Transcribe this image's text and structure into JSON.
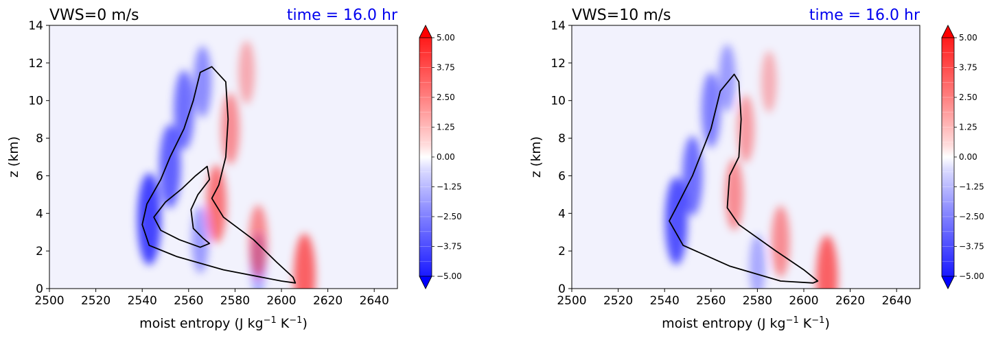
{
  "colors": {
    "background_field": "#f2f2fd",
    "negative": "#0000ff",
    "positive": "#ff0000",
    "time_text": "#0000ee",
    "contour": "#000000"
  },
  "chart_data": [
    {
      "type": "heatmap",
      "title": "VWS=0 m/s",
      "time_label": "time = 16.0 hr",
      "xlabel_parts": [
        "moist entropy (J kg",
        "−1",
        " K",
        "−1",
        ")"
      ],
      "ylabel": "z (km)",
      "xlim": [
        2500,
        2650
      ],
      "ylim": [
        0,
        14
      ],
      "xticks": [
        "2500",
        "2520",
        "2540",
        "2560",
        "2580",
        "2600",
        "2620",
        "2640"
      ],
      "yticks": [
        "0",
        "2",
        "4",
        "6",
        "8",
        "10",
        "12",
        "14"
      ],
      "colorbar": {
        "range": [
          -5.0,
          5.0
        ],
        "ticks": [
          "5.00",
          "3.75",
          "2.50",
          "1.25",
          "0.00",
          "−1.25",
          "−2.50",
          "−3.75",
          "−5.00"
        ],
        "extend": "both"
      },
      "fields": {
        "negative": [
          [
            2543,
            3.7,
            -4.5
          ],
          [
            2552,
            6.5,
            -3.5
          ],
          [
            2558,
            9.5,
            -3.0
          ],
          [
            2566,
            11.0,
            -2.0
          ],
          [
            2565,
            2.6,
            -1.5
          ],
          [
            2590,
            1.3,
            -1.0
          ]
        ],
        "positive": [
          [
            2572,
            4.5,
            2.8
          ],
          [
            2578,
            8.5,
            2.0
          ],
          [
            2590,
            2.5,
            2.2
          ],
          [
            2610,
            0.7,
            3.5
          ],
          [
            2585,
            11.5,
            1.0
          ]
        ]
      },
      "contour_outer": [
        [
          2570,
          11.8
        ],
        [
          2576,
          11.0
        ],
        [
          2577,
          9.0
        ],
        [
          2576,
          7.0
        ],
        [
          2573,
          5.5
        ],
        [
          2570,
          4.8
        ],
        [
          2575,
          3.8
        ],
        [
          2588,
          2.6
        ],
        [
          2598,
          1.4
        ],
        [
          2605,
          0.6
        ],
        [
          2606,
          0.3
        ],
        [
          2600,
          0.4
        ],
        [
          2575,
          1.0
        ],
        [
          2555,
          1.7
        ],
        [
          2543,
          2.3
        ],
        [
          2540,
          3.4
        ],
        [
          2542,
          4.5
        ],
        [
          2548,
          5.8
        ],
        [
          2552,
          7.0
        ],
        [
          2558,
          8.5
        ],
        [
          2562,
          10.0
        ],
        [
          2565,
          11.5
        ],
        [
          2570,
          11.8
        ]
      ],
      "contour_inner": [
        [
          2568,
          6.5
        ],
        [
          2569,
          5.8
        ],
        [
          2564,
          5.0
        ],
        [
          2561,
          4.2
        ],
        [
          2562,
          3.2
        ],
        [
          2566,
          2.7
        ],
        [
          2569,
          2.4
        ],
        [
          2565,
          2.2
        ],
        [
          2556,
          2.6
        ],
        [
          2548,
          3.1
        ],
        [
          2545,
          3.8
        ],
        [
          2550,
          4.6
        ],
        [
          2557,
          5.3
        ],
        [
          2563,
          6.0
        ],
        [
          2568,
          6.5
        ]
      ]
    },
    {
      "type": "heatmap",
      "title": "VWS=10 m/s",
      "time_label": "time = 16.0 hr",
      "xlabel_parts": [
        "moist entropy (J kg",
        "−1",
        " K",
        "−1",
        ")"
      ],
      "ylabel": "z (km)",
      "xlim": [
        2500,
        2650
      ],
      "ylim": [
        0,
        14
      ],
      "xticks": [
        "2500",
        "2520",
        "2540",
        "2560",
        "2580",
        "2600",
        "2620",
        "2640"
      ],
      "yticks": [
        "0",
        "2",
        "4",
        "6",
        "8",
        "10",
        "12",
        "14"
      ],
      "colorbar": {
        "range": [
          -5.0,
          5.0
        ],
        "ticks": [
          "5.00",
          "3.75",
          "2.50",
          "1.25",
          "0.00",
          "−1.25",
          "−2.50",
          "−3.75",
          "−5.00"
        ],
        "extend": "both"
      },
      "fields": {
        "negative": [
          [
            2545,
            3.6,
            -4.0
          ],
          [
            2552,
            6.0,
            -3.0
          ],
          [
            2560,
            9.5,
            -2.5
          ],
          [
            2567,
            11.2,
            -1.5
          ],
          [
            2580,
            1.2,
            -1.0
          ]
        ],
        "positive": [
          [
            2570,
            5.0,
            2.0
          ],
          [
            2575,
            8.5,
            1.5
          ],
          [
            2590,
            2.5,
            2.0
          ],
          [
            2610,
            0.6,
            3.5
          ],
          [
            2585,
            11.0,
            0.8
          ]
        ]
      },
      "contour_outer": [
        [
          2570,
          11.4
        ],
        [
          2572,
          11.0
        ],
        [
          2573,
          9.0
        ],
        [
          2572,
          7.0
        ],
        [
          2568,
          6.0
        ],
        [
          2567,
          4.3
        ],
        [
          2572,
          3.4
        ],
        [
          2588,
          2.0
        ],
        [
          2600,
          1.0
        ],
        [
          2606,
          0.4
        ],
        [
          2604,
          0.3
        ],
        [
          2590,
          0.4
        ],
        [
          2568,
          1.2
        ],
        [
          2548,
          2.3
        ],
        [
          2542,
          3.6
        ],
        [
          2545,
          4.3
        ],
        [
          2552,
          6.0
        ],
        [
          2560,
          8.5
        ],
        [
          2564,
          10.5
        ],
        [
          2570,
          11.4
        ]
      ]
    }
  ]
}
